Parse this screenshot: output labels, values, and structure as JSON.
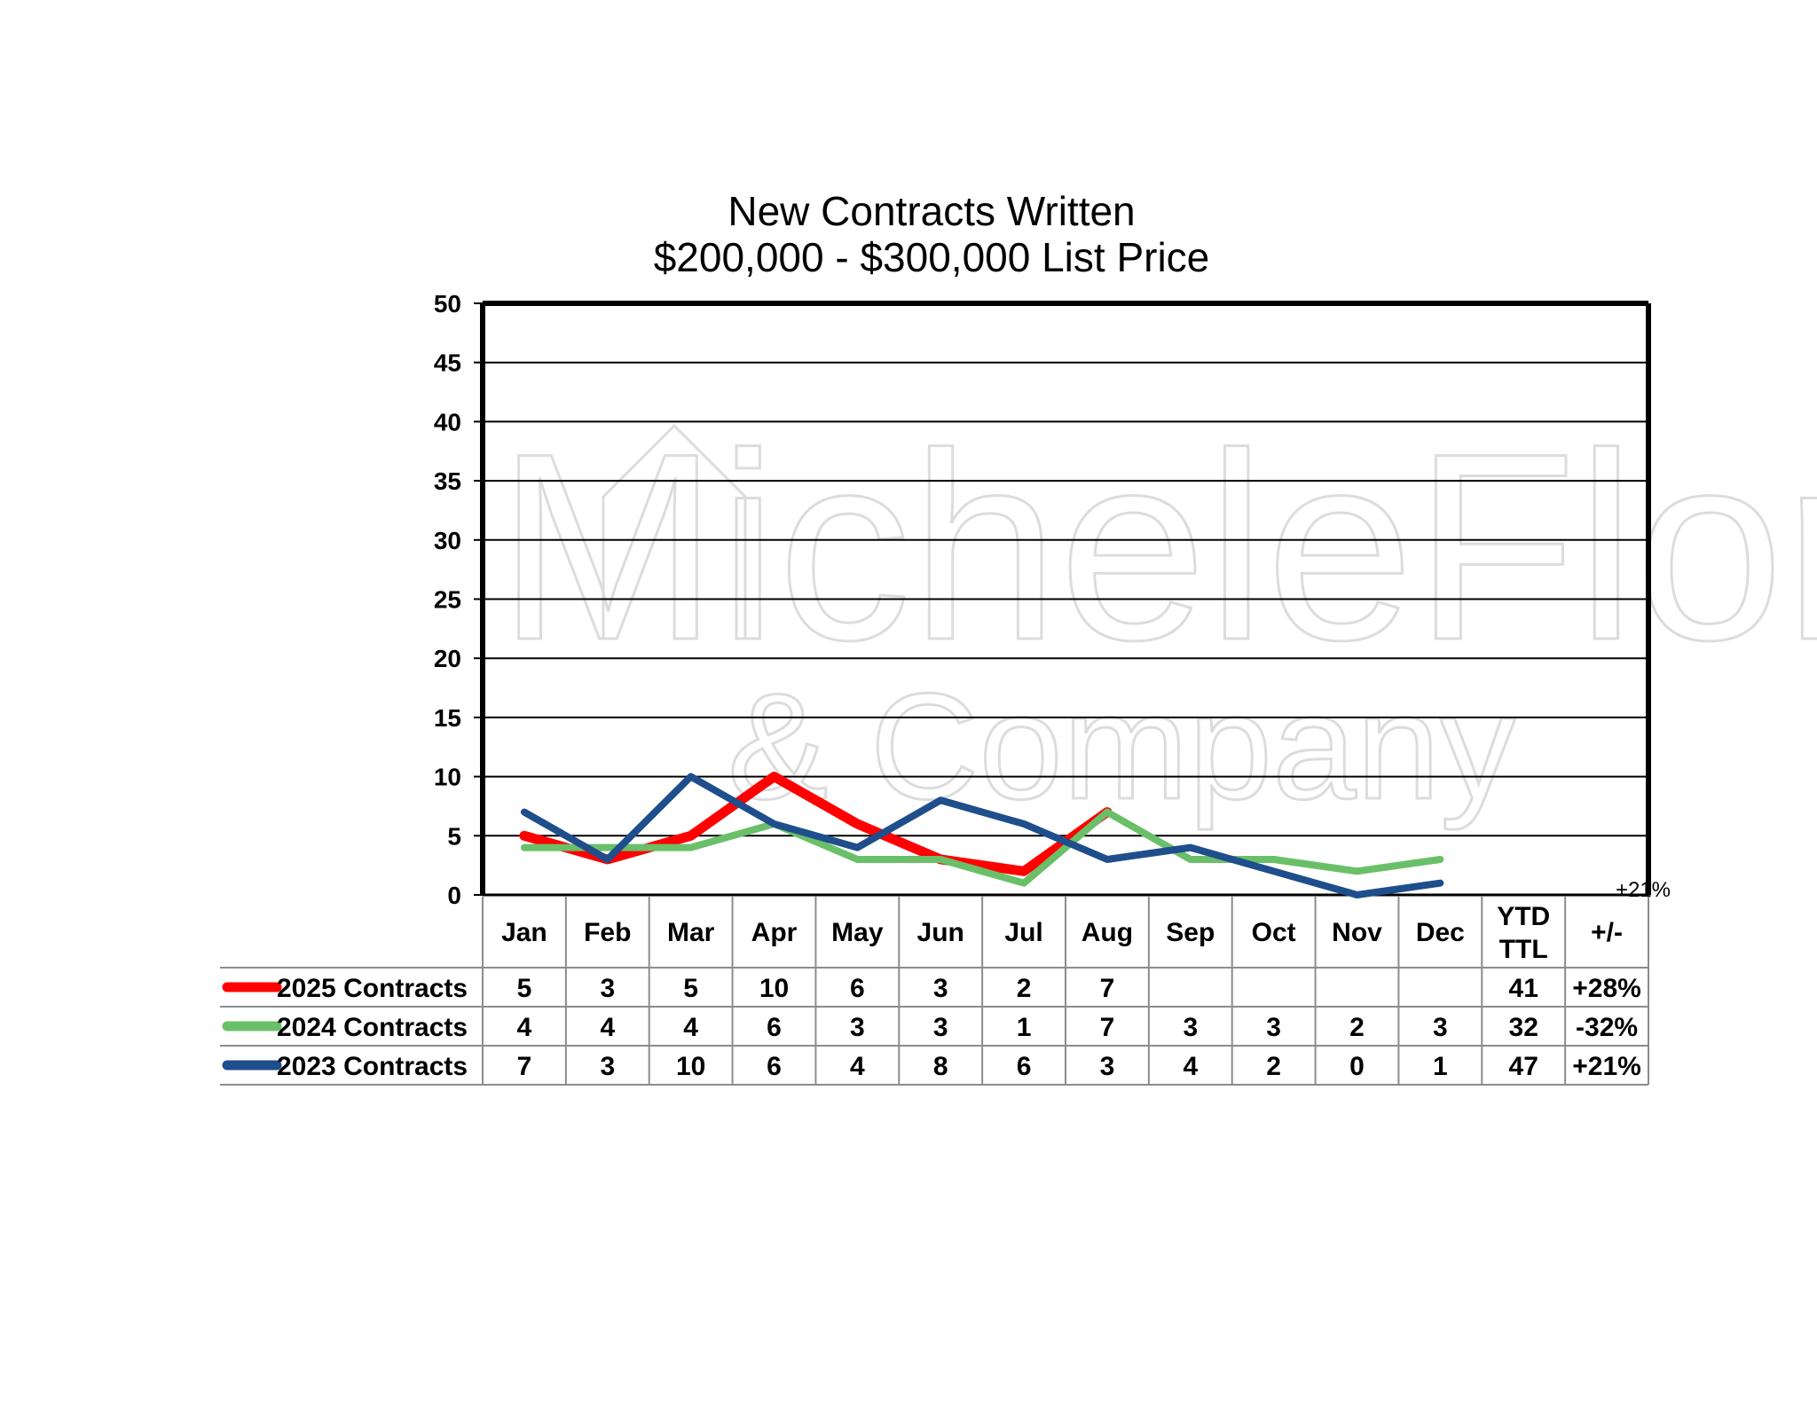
{
  "chart_data": {
    "type": "line",
    "title": "New Contracts Written",
    "subtitle": "$200,000 - $300,000 List Price",
    "categories": [
      "Jan",
      "Feb",
      "Mar",
      "Apr",
      "May",
      "Jun",
      "Jul",
      "Aug",
      "Sep",
      "Oct",
      "Nov",
      "Dec"
    ],
    "ylim": [
      0,
      50
    ],
    "yticks": [
      0,
      5,
      10,
      15,
      20,
      25,
      30,
      35,
      40,
      45,
      50
    ],
    "grid": true,
    "summary_headers": {
      "ytd_line1": "YTD",
      "ytd_line2": "TTL",
      "change": "+/-"
    },
    "series": [
      {
        "name": "2025 Contracts",
        "color": "#ff0000",
        "values": [
          5,
          3,
          5,
          10,
          6,
          3,
          2,
          7,
          null,
          null,
          null,
          null
        ],
        "ytd": "41",
        "change": "+28%"
      },
      {
        "name": "2024 Contracts",
        "color": "#6abf69",
        "values": [
          4,
          4,
          4,
          6,
          3,
          3,
          1,
          7,
          3,
          3,
          2,
          3
        ],
        "ytd": "32",
        "change": "-32%"
      },
      {
        "name": "2023 Contracts",
        "color": "#1f4e8c",
        "values": [
          7,
          3,
          10,
          6,
          4,
          8,
          6,
          3,
          4,
          2,
          0,
          1
        ],
        "ytd": "47",
        "change": "+21%"
      }
    ],
    "annotation": "+21%"
  },
  "watermark": {
    "line1": "MicheleFlory",
    "line2": "& Company"
  }
}
